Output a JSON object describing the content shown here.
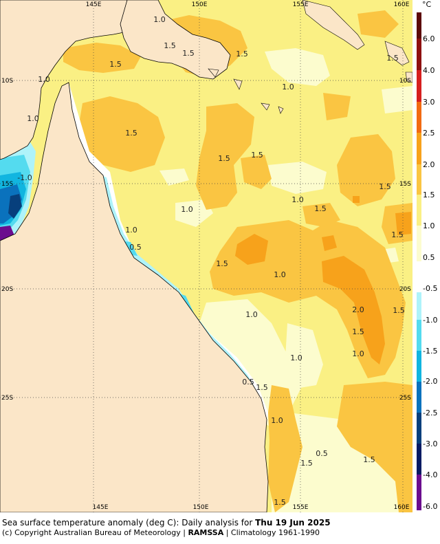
{
  "map": {
    "longitude_labels": [
      "145E",
      "150E",
      "155E",
      "160E"
    ],
    "latitude_labels": [
      "10S",
      "15S",
      "20S",
      "25S"
    ],
    "contour_labels": [
      "1.0",
      "1.5",
      "1.5",
      "1.5",
      "1.5",
      "1.0",
      "1.0",
      "1.0",
      "1.5",
      "1.5",
      "1.5",
      "1.0",
      "1.0",
      "1.5",
      "0.5",
      "1.5",
      "1.5",
      "1.0",
      "1.5",
      "1.0",
      "1.0",
      "2.0",
      "1.5",
      "1.5",
      "1.0",
      "1.0",
      "0.5",
      "1.5",
      "1.0",
      "0.5",
      "1.5",
      "1.5",
      "1.5",
      "1.5",
      "-1.0"
    ]
  },
  "legend": {
    "unit": "°C",
    "labels": [
      "6.0",
      "4.0",
      "3.0",
      "2.5",
      "2.0",
      "1.5",
      "1.0",
      "0.5",
      "-0.5",
      "-1.0",
      "-1.5",
      "-2.0",
      "-2.5",
      "-3.0",
      "-4.0",
      "-6.0"
    ],
    "colors": {
      "ge6": "#5c0a0a",
      "4to6": "#8e1010",
      "3to4": "#d61f1f",
      "2.5to3": "#f26a12",
      "2to2.5": "#f7a21b",
      "1.5to2": "#fac542",
      "1to1.5": "#faf084",
      "0.5to1": "#fcfcce",
      "neutral": "#ffffff",
      "m0.5tom1": "#aef3fa",
      "m1tom1.5": "#54dbef",
      "m1.5tom2": "#11b5e0",
      "m2tom2.5": "#0a72bd",
      "m2.5tom3": "#073f7c",
      "m3tom4": "#061a63",
      "m4tom6": "#6b0d8e",
      "land": "#fbe6c8"
    }
  },
  "caption": {
    "line1_prefix": "Sea surface temperature anomaly (deg C): Daily analysis for ",
    "line1_date": "Thu 19 Jun 2025",
    "line2_prefix": "(c) Copyright Australian Bureau of Meteorology | ",
    "line2_brand": "RAMSSA",
    "line2_suffix": " | Climatology 1961-1990"
  }
}
